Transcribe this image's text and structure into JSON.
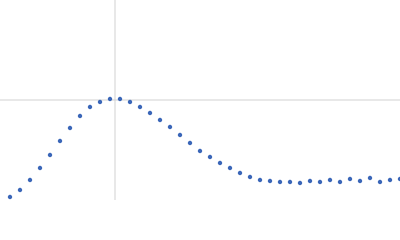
{
  "chart_data": {
    "type": "scatter",
    "color": "#3a66b8",
    "x": [
      0.1,
      0.2,
      0.3,
      0.4,
      0.5,
      0.6,
      0.7,
      0.8,
      0.9,
      1.0,
      1.1,
      1.2,
      1.3,
      1.4,
      1.5,
      1.6,
      1.7,
      1.8,
      1.9,
      2.0,
      2.1,
      2.2,
      2.3,
      2.4,
      2.5,
      2.6,
      2.7,
      2.8,
      2.9,
      3.0,
      3.1,
      3.2,
      3.3,
      3.4,
      3.5,
      3.6,
      3.7,
      3.8,
      3.9,
      4.0
    ],
    "values": [
      0.03,
      0.1,
      0.2,
      0.32,
      0.45,
      0.59,
      0.72,
      0.84,
      0.93,
      0.98,
      1.01,
      1.01,
      0.98,
      0.93,
      0.87,
      0.8,
      0.73,
      0.65,
      0.57,
      0.49,
      0.43,
      0.37,
      0.32,
      0.27,
      0.23,
      0.2,
      0.19,
      0.18,
      0.18,
      0.17,
      0.19,
      0.18,
      0.2,
      0.18,
      0.21,
      0.19,
      0.22,
      0.18,
      0.2,
      0.21
    ],
    "xlim": [
      0,
      4
    ],
    "ylim": [
      0,
      2
    ],
    "xticks": [
      1.15
    ],
    "yticks": [
      1
    ],
    "grid": true
  }
}
